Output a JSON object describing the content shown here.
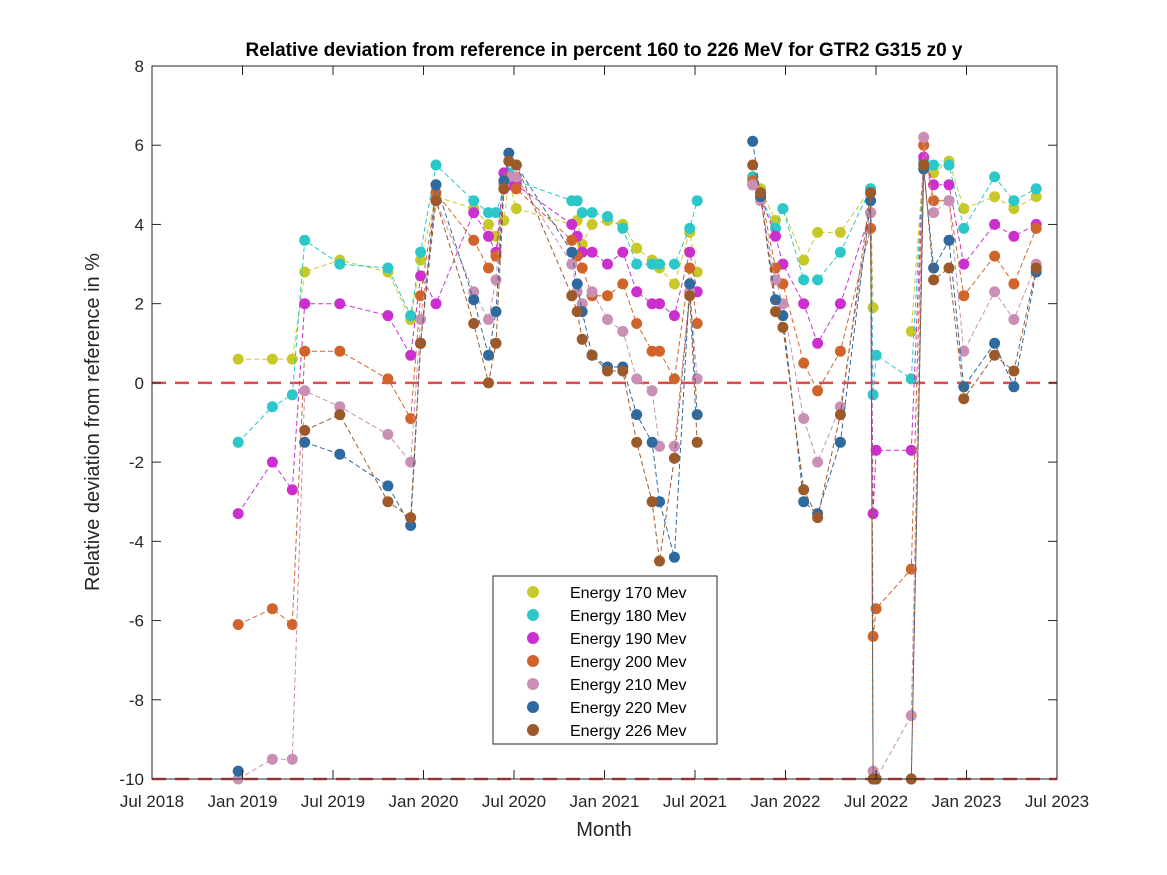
{
  "chart_data": {
    "type": "line",
    "title": "Relative deviation from reference in percent 160 to 226 MeV for GTR2 G315 z0 y",
    "xlabel": "Month",
    "ylabel": "Relative deviation from reference in %",
    "xlim": [
      "2018-07-01",
      "2023-07-01"
    ],
    "ylim": [
      -10,
      8
    ],
    "x_ticks": [
      "Jul 2018",
      "Jan 2019",
      "Jul 2019",
      "Jan 2020",
      "Jul 2020",
      "Jan 2021",
      "Jul 2021",
      "Jan 2022",
      "Jul 2022",
      "Jan 2023",
      "Jul 2023"
    ],
    "y_ticks": [
      -10,
      -8,
      -6,
      -4,
      -2,
      0,
      2,
      4,
      6,
      8
    ],
    "reference_lines": [
      0,
      -10
    ],
    "legend_position": "lower center",
    "dates": [
      "2018-12-22",
      "2019-03-01",
      "2019-04-10",
      "2019-05-05",
      "2019-07-15",
      "2019-10-20",
      "2019-12-05",
      "2019-12-25",
      "2020-01-25",
      "2020-04-10",
      "2020-05-10",
      "2020-05-25",
      "2020-06-10",
      "2020-06-20",
      "2020-07-05",
      "2020-10-25",
      "2020-11-05",
      "2020-11-15",
      "2020-12-05",
      "2021-01-05",
      "2021-02-05",
      "2021-03-05",
      "2021-04-05",
      "2021-04-20",
      "2021-05-20",
      "2021-06-20",
      "2021-07-05",
      "2021-08-05",
      "2021-10-25",
      "2021-11-10",
      "2021-12-10",
      "2021-12-25",
      "2022-02-05",
      "2022-03-05",
      "2022-04-20",
      "2022-06-20",
      "2022-06-25",
      "2022-07-01",
      "2022-09-10",
      "2022-10-05",
      "2022-10-25",
      "2022-11-25",
      "2022-12-25",
      "2023-02-25",
      "2023-04-05",
      "2023-05-20",
      "2023-06-20"
    ],
    "series": [
      {
        "name": "Energy 170 Mev",
        "color": "#c9c829",
        "values": [
          0.6,
          0.6,
          0.6,
          2.8,
          3.1,
          2.8,
          1.6,
          3.1,
          4.7,
          4.4,
          4.0,
          3.7,
          4.1,
          5.1,
          4.4,
          4.0,
          4.1,
          3.5,
          4.0,
          4.1,
          4.0,
          3.4,
          3.1,
          2.9,
          2.5,
          3.8,
          2.8,
          null,
          5.2,
          4.9,
          4.1,
          4.4,
          3.1,
          3.8,
          3.8,
          4.9,
          1.9,
          null,
          1.3,
          5.6,
          5.3,
          5.6,
          4.4,
          4.7,
          4.4,
          4.7,
          null
        ]
      },
      {
        "name": "Energy 180 Mev",
        "color": "#2cc7c8",
        "values": [
          -1.5,
          -0.6,
          -0.3,
          3.6,
          3.0,
          2.9,
          1.7,
          3.3,
          5.5,
          4.6,
          4.3,
          4.3,
          4.9,
          5.3,
          5.1,
          4.6,
          4.6,
          4.3,
          4.3,
          4.2,
          3.9,
          3.0,
          3.0,
          3.0,
          3.0,
          3.9,
          4.6,
          null,
          5.2,
          4.7,
          3.9,
          4.4,
          2.6,
          2.6,
          3.3,
          4.9,
          -0.3,
          0.7,
          0.1,
          5.6,
          5.5,
          5.5,
          3.9,
          5.2,
          4.6,
          4.9,
          null
        ]
      },
      {
        "name": "Energy 190 Mev",
        "color": "#cb2fcf",
        "values": [
          -3.3,
          -2.0,
          -2.7,
          2.0,
          2.0,
          1.7,
          0.7,
          2.7,
          2.0,
          4.3,
          3.7,
          3.3,
          5.3,
          5.0,
          5.0,
          4.0,
          3.7,
          3.3,
          3.3,
          3.0,
          3.3,
          2.3,
          2.0,
          2.0,
          1.7,
          3.3,
          2.3,
          null,
          5.0,
          4.7,
          3.7,
          3.0,
          2.0,
          1.0,
          2.0,
          4.3,
          -3.3,
          -1.7,
          -1.7,
          5.7,
          5.0,
          5.0,
          3.0,
          4.0,
          3.7,
          4.0,
          null
        ]
      },
      {
        "name": "Energy 200 Mev",
        "color": "#d1642b",
        "values": [
          -6.1,
          -5.7,
          -6.1,
          0.8,
          0.8,
          0.1,
          -0.9,
          2.2,
          4.8,
          3.6,
          2.9,
          3.2,
          4.9,
          5.2,
          4.9,
          3.6,
          3.2,
          2.9,
          2.2,
          2.2,
          2.5,
          1.5,
          0.8,
          0.8,
          0.1,
          2.9,
          1.5,
          null,
          5.1,
          4.8,
          2.9,
          2.5,
          0.5,
          -0.2,
          0.8,
          3.9,
          -6.4,
          -5.7,
          -4.7,
          6.0,
          4.6,
          4.6,
          2.2,
          3.2,
          2.5,
          3.9,
          null
        ]
      },
      {
        "name": "Energy 210 Mev",
        "color": "#c98fb4",
        "values": [
          -10.0,
          -9.5,
          -9.5,
          -0.2,
          -0.6,
          -1.3,
          -2.0,
          1.6,
          4.6,
          2.3,
          1.6,
          2.6,
          5.0,
          5.2,
          5.2,
          3.0,
          2.3,
          2.0,
          2.3,
          1.6,
          1.3,
          0.1,
          -0.2,
          -1.6,
          -1.6,
          2.3,
          0.1,
          null,
          5.0,
          4.6,
          2.6,
          2.0,
          -0.9,
          -2.0,
          -0.6,
          4.3,
          -9.8,
          -10.0,
          -8.4,
          6.2,
          4.3,
          4.6,
          0.8,
          2.3,
          1.6,
          3.0,
          null
        ]
      },
      {
        "name": "Energy 220 Mev",
        "color": "#2e6aa0",
        "values": [
          -9.8,
          null,
          null,
          -1.5,
          -1.8,
          -2.6,
          -3.6,
          1.0,
          5.0,
          2.1,
          0.7,
          1.8,
          5.1,
          5.8,
          5.5,
          3.3,
          2.5,
          1.8,
          0.7,
          0.4,
          0.4,
          -0.8,
          -1.5,
          -3.0,
          -4.4,
          2.5,
          -0.8,
          null,
          6.1,
          4.7,
          2.1,
          1.7,
          -3.0,
          -3.3,
          -1.5,
          4.6,
          -10.0,
          -10.0,
          -10.0,
          5.4,
          2.9,
          3.6,
          -0.1,
          1.0,
          -0.1,
          2.8,
          null
        ]
      },
      {
        "name": "Energy 226 Mev",
        "color": "#9c5a2a",
        "values": [
          null,
          null,
          null,
          -1.2,
          -0.8,
          -3.0,
          -3.4,
          1.0,
          4.6,
          1.5,
          0.0,
          1.0,
          4.9,
          5.6,
          5.5,
          2.2,
          1.8,
          1.1,
          0.7,
          0.3,
          0.3,
          -1.5,
          -3.0,
          -4.5,
          -1.9,
          2.2,
          -1.5,
          null,
          5.5,
          4.8,
          1.8,
          1.4,
          -2.7,
          -3.4,
          -0.8,
          4.8,
          -10.0,
          -10.0,
          -10.0,
          5.5,
          2.6,
          2.9,
          -0.4,
          0.7,
          0.3,
          2.9,
          null
        ]
      }
    ]
  }
}
